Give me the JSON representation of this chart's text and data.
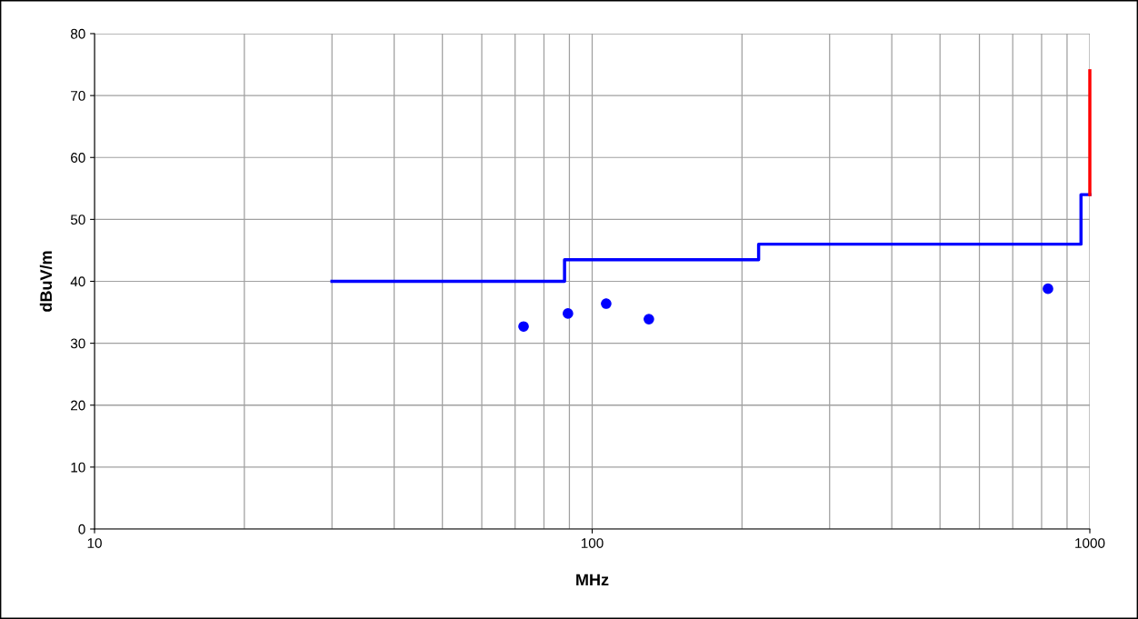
{
  "chart_data": {
    "type": "step",
    "xlabel": "MHz",
    "ylabel": "dBuV/m",
    "log": "x",
    "xlim": [
      10,
      1000
    ],
    "xticks": [
      10,
      100,
      1000
    ],
    "ylim": [
      0,
      80
    ],
    "yticks": [
      0,
      10,
      20,
      30,
      40,
      50,
      60,
      70,
      80
    ],
    "grid": true,
    "series": [
      {
        "color": "#0000ff",
        "x": [
          30,
          88,
          216,
          960,
          1000
        ],
        "values": [
          40,
          43.5,
          46,
          54,
          54
        ]
      },
      {
        "type": "line",
        "color": "#ff0000",
        "x": [
          1000,
          1000
        ],
        "values": [
          54,
          74
        ]
      },
      {
        "type": "scatter",
        "color": "#0000ff",
        "marker": "circle",
        "x": [
          72.8,
          89.4,
          106.7,
          130,
          824
        ],
        "values": [
          32.7,
          34.8,
          36.4,
          33.9,
          38.8
        ]
      }
    ]
  }
}
